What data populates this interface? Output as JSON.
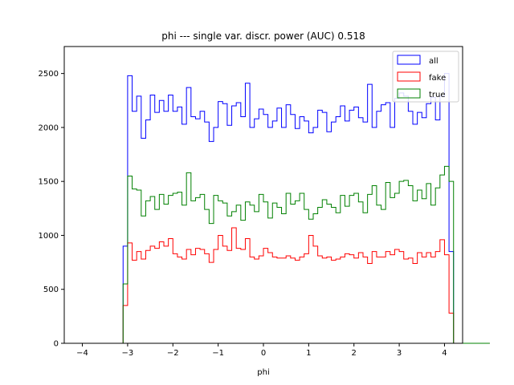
{
  "chart_data": {
    "type": "histogram-step",
    "title": "phi --- single var. discr. power (AUC) 0.518",
    "xlabel": "phi",
    "ylabel": "",
    "xlim": [
      -4.4,
      4.4
    ],
    "ylim": [
      0,
      2750
    ],
    "xticks": [
      -4,
      -3,
      -2,
      -1,
      0,
      1,
      2,
      3,
      4
    ],
    "yticks": [
      0,
      500,
      1000,
      1500,
      2000,
      2500
    ],
    "grid": false,
    "legend_position": "top-right",
    "bin_start": -4.0,
    "bin_width": 0.1,
    "series": [
      {
        "name": "all",
        "color": "#0000ff",
        "values": [
          0,
          0,
          0,
          0,
          0,
          0,
          0,
          0,
          0,
          900,
          2480,
          2150,
          2290,
          1900,
          2070,
          2300,
          2140,
          2250,
          2150,
          2300,
          2150,
          2190,
          2030,
          2370,
          2100,
          2080,
          2150,
          2050,
          1870,
          2000,
          2240,
          2220,
          2020,
          2200,
          2230,
          2100,
          2410,
          2000,
          2080,
          2170,
          2120,
          2000,
          2060,
          2180,
          2000,
          2210,
          2120,
          1990,
          2100,
          2060,
          1950,
          2000,
          2160,
          2140,
          1960,
          2050,
          2100,
          2200,
          2060,
          2160,
          2190,
          2090,
          2050,
          2400,
          2000,
          2150,
          2210,
          2230,
          2000,
          2270,
          2320,
          2290,
          2150,
          2030,
          2140,
          2090,
          2220,
          2280,
          2070,
          2290,
          2500,
          850,
          0,
          0,
          0,
          0,
          0,
          0,
          0,
          0
        ]
      },
      {
        "name": "fake",
        "color": "#ff0000",
        "values": [
          0,
          0,
          0,
          0,
          0,
          0,
          0,
          0,
          0,
          350,
          930,
          770,
          850,
          780,
          860,
          900,
          880,
          940,
          900,
          970,
          830,
          800,
          780,
          870,
          820,
          880,
          870,
          830,
          750,
          870,
          1000,
          900,
          860,
          1070,
          880,
          870,
          970,
          800,
          780,
          810,
          880,
          840,
          800,
          790,
          790,
          810,
          790,
          770,
          800,
          830,
          1000,
          900,
          810,
          790,
          800,
          770,
          780,
          800,
          830,
          820,
          790,
          840,
          800,
          740,
          850,
          800,
          800,
          850,
          820,
          870,
          850,
          780,
          790,
          740,
          840,
          800,
          840,
          800,
          850,
          960,
          820,
          280,
          0,
          0,
          0,
          0,
          0,
          0,
          0,
          0
        ]
      },
      {
        "name": "true",
        "color": "#008000",
        "values": [
          0,
          0,
          0,
          0,
          0,
          0,
          0,
          0,
          0,
          550,
          1550,
          1430,
          1420,
          1180,
          1320,
          1360,
          1240,
          1380,
          1290,
          1370,
          1390,
          1400,
          1280,
          1580,
          1320,
          1350,
          1380,
          1240,
          1110,
          1370,
          1320,
          1300,
          1180,
          1220,
          1280,
          1140,
          1310,
          1280,
          1220,
          1380,
          1310,
          1160,
          1300,
          1260,
          1200,
          1390,
          1290,
          1320,
          1390,
          1240,
          1150,
          1200,
          1260,
          1330,
          1290,
          1260,
          1210,
          1370,
          1270,
          1370,
          1390,
          1310,
          1210,
          1380,
          1460,
          1280,
          1240,
          1490,
          1350,
          1390,
          1500,
          1510,
          1460,
          1320,
          1420,
          1340,
          1480,
          1280,
          1440,
          1560,
          1640,
          1500,
          0,
          0,
          0,
          0,
          0,
          0,
          0,
          0
        ]
      }
    ]
  }
}
